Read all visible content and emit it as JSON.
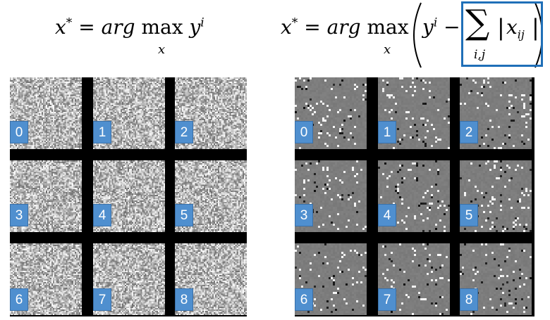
{
  "formula_left": {
    "lhs": "x",
    "star": "*",
    "eq": "=",
    "arg": "arg",
    "max": "max",
    "max_sub": "x",
    "y": "y",
    "y_sup": "i"
  },
  "formula_right": {
    "lhs": "x",
    "star": "*",
    "eq": "=",
    "arg": "arg",
    "max": "max",
    "max_sub": "x",
    "y": "y",
    "y_sup": "i",
    "minus": "−",
    "sum": "∑",
    "sum_sub": "i,j",
    "abs_open": "|",
    "xij": "x",
    "xij_sub": "ij",
    "abs_close": "|",
    "highlight_color": "#1f6fb8"
  },
  "left_panel": {
    "labels": [
      "0",
      "1",
      "2",
      "3",
      "4",
      "5",
      "6",
      "7",
      "8"
    ]
  },
  "right_panel": {
    "labels": [
      "0",
      "1",
      "2",
      "3",
      "4",
      "5",
      "6",
      "7",
      "8"
    ]
  },
  "colors": {
    "badge": "#4f8fcf",
    "grid": "#000000",
    "noise_base": "#b8b8b8",
    "grad_base": "#7d7d7d"
  }
}
